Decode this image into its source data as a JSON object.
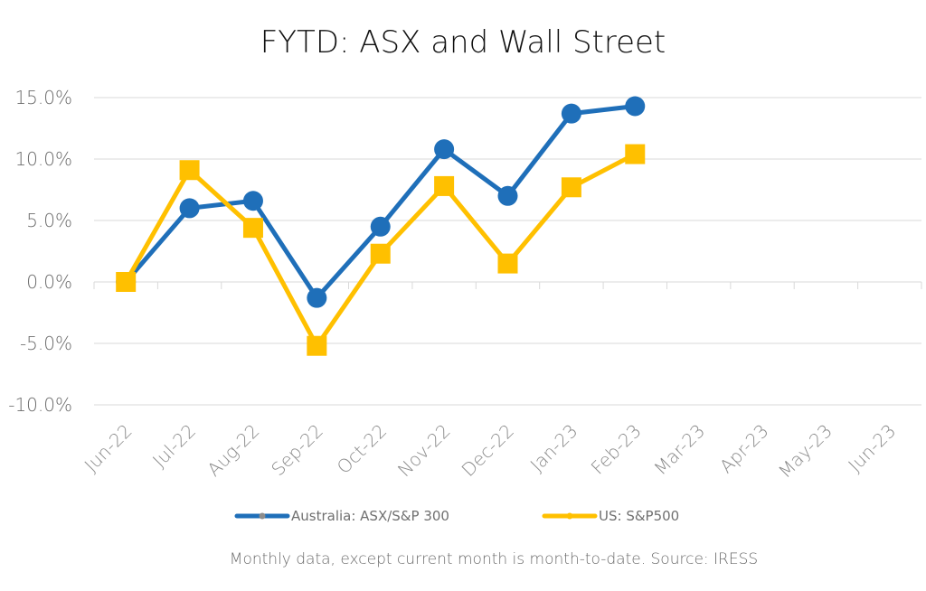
{
  "chart_data": {
    "type": "line",
    "title": "FYTD: ASX and Wall Street",
    "categories": [
      "Jun-22",
      "Jul-22",
      "Aug-22",
      "Sep-22",
      "Oct-22",
      "Nov-22",
      "Dec-22",
      "Jan-23",
      "Feb-23",
      "Mar-23",
      "Apr-23",
      "May-23",
      "Jun-23"
    ],
    "ylim": [
      -10,
      15
    ],
    "yticks": [
      15,
      10,
      5,
      0,
      -5,
      -10
    ],
    "ytick_labels": [
      "15.0%",
      "10.0%",
      "5.0%",
      "0.0%",
      "-5.0%",
      "-10.0%"
    ],
    "grid": true,
    "legend_position": "bottom",
    "series": [
      {
        "name": "Australia: ASX/S&P 300",
        "color": "#1f6fb9",
        "marker": "circle",
        "values": [
          0.0,
          6.0,
          6.6,
          -1.3,
          4.5,
          10.8,
          7.0,
          13.7,
          14.3,
          null,
          null,
          null,
          null
        ]
      },
      {
        "name": "US: S&P500",
        "color": "#ffc000",
        "marker": "square",
        "values": [
          0.0,
          9.1,
          4.4,
          -5.2,
          2.3,
          7.8,
          1.5,
          7.7,
          10.4,
          null,
          null,
          null,
          null
        ]
      }
    ],
    "footnote": "Monthly data, except current month is month-to-date.  Source: IRESS"
  }
}
